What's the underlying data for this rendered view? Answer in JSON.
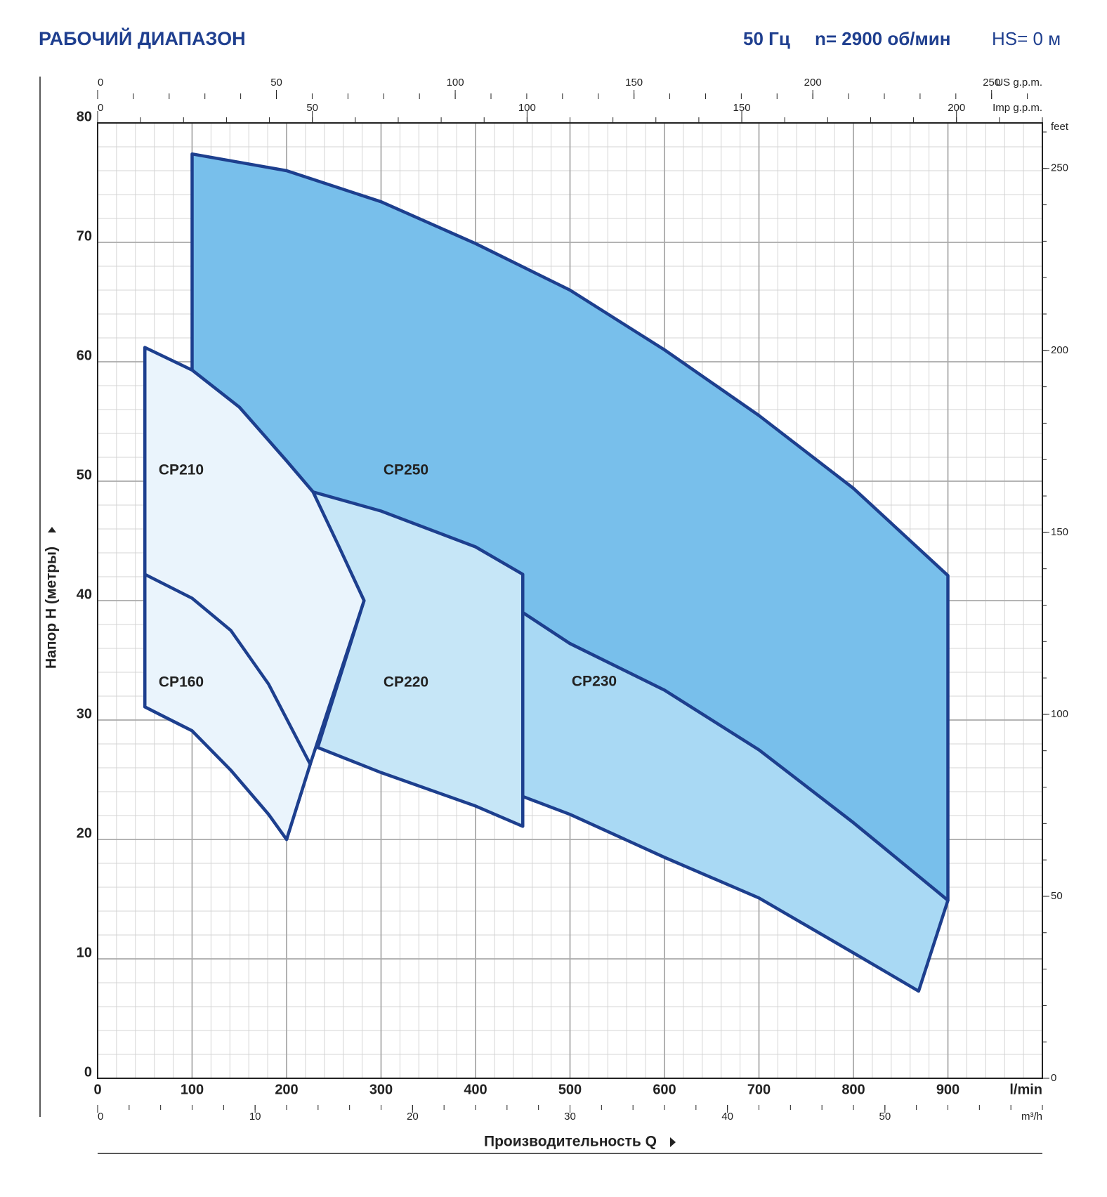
{
  "chart_data": {
    "type": "range",
    "title": "РАБОЧИЙ ДИАПАЗОН",
    "subtitle": [
      "50 Гц",
      "n= 2900 об/мин",
      "HS= 0 м"
    ],
    "xlabel": "Производительность Q",
    "xunit": "l/min",
    "ylabel": "Напор H (метры)",
    "xlim": [
      0,
      1000
    ],
    "xticks": [
      0,
      100,
      200,
      300,
      400,
      500,
      600,
      700,
      800,
      900
    ],
    "ylim": [
      0,
      80
    ],
    "yticks": [
      0,
      10,
      20,
      30,
      40,
      50,
      60,
      70,
      80
    ],
    "y2label": "feet",
    "y2lim": [
      0,
      262.5
    ],
    "y2ticks": [
      0,
      50,
      100,
      150,
      200,
      250
    ],
    "y2minor": 10,
    "grid": true,
    "grid_minor": [
      20,
      2
    ],
    "x_axes": [
      {
        "label": "US g.p.m.",
        "lim": [
          0,
          264.2
        ],
        "ticks": [
          0,
          50,
          100,
          150,
          200,
          250
        ],
        "minor": 10
      },
      {
        "label": "Imp g.p.m.",
        "lim": [
          0,
          220
        ],
        "ticks": [
          0,
          50,
          100,
          150,
          200
        ],
        "minor": 10
      },
      {
        "label": "m³/h",
        "lim": [
          0,
          60
        ],
        "ticks": [
          0,
          10,
          20,
          30,
          40,
          50
        ],
        "minor": 2
      }
    ],
    "series": [
      {
        "name": "CP250",
        "color": "#78bfeb",
        "x": [
          100,
          100,
          200,
          300,
          400,
          500,
          600,
          700,
          800,
          900,
          900,
          800,
          700,
          600,
          500,
          450,
          350,
          228,
          200,
          150
        ],
        "values": [
          59.3,
          77.4,
          76,
          73.4,
          69.9,
          66,
          61,
          55.5,
          49.4,
          42.1,
          14.9,
          21.4,
          27.5,
          32.5,
          36.4,
          39,
          44,
          49.1,
          51.7,
          56.2
        ]
      },
      {
        "name": "CP230",
        "color": "#a9d9f4",
        "x": [
          450,
          500,
          600,
          700,
          800,
          900,
          869,
          800,
          700,
          600,
          500,
          450
        ],
        "values": [
          39,
          36.4,
          32.5,
          27.5,
          21.4,
          14.9,
          7.3,
          10.5,
          15.1,
          18.5,
          22.1,
          23.6
        ]
      },
      {
        "name": "CP220",
        "color": "#c6e6f7",
        "x": [
          228,
          300,
          400,
          450,
          450,
          400,
          300,
          233,
          282
        ],
        "values": [
          49.1,
          47.5,
          44.5,
          42.2,
          21.1,
          22.8,
          25.6,
          27.7,
          40
        ]
      },
      {
        "name": "CP210",
        "color": "#eaf4fc",
        "x": [
          50,
          100,
          150,
          200,
          228,
          255,
          282,
          225,
          200,
          181,
          141,
          100,
          50
        ],
        "values": [
          61.2,
          59.3,
          56.2,
          51.7,
          49.1,
          44.6,
          40,
          26.3,
          20,
          22.1,
          25.8,
          29.1,
          31.1
        ]
      },
      {
        "name": "CP160",
        "color": "#eaf4fc",
        "x": [
          50,
          100,
          141,
          181,
          225,
          200,
          181,
          141,
          100,
          50
        ],
        "values": [
          42.2,
          40.2,
          37.5,
          33,
          26.3,
          20,
          22.1,
          25.8,
          29.1,
          31.1
        ]
      }
    ]
  }
}
